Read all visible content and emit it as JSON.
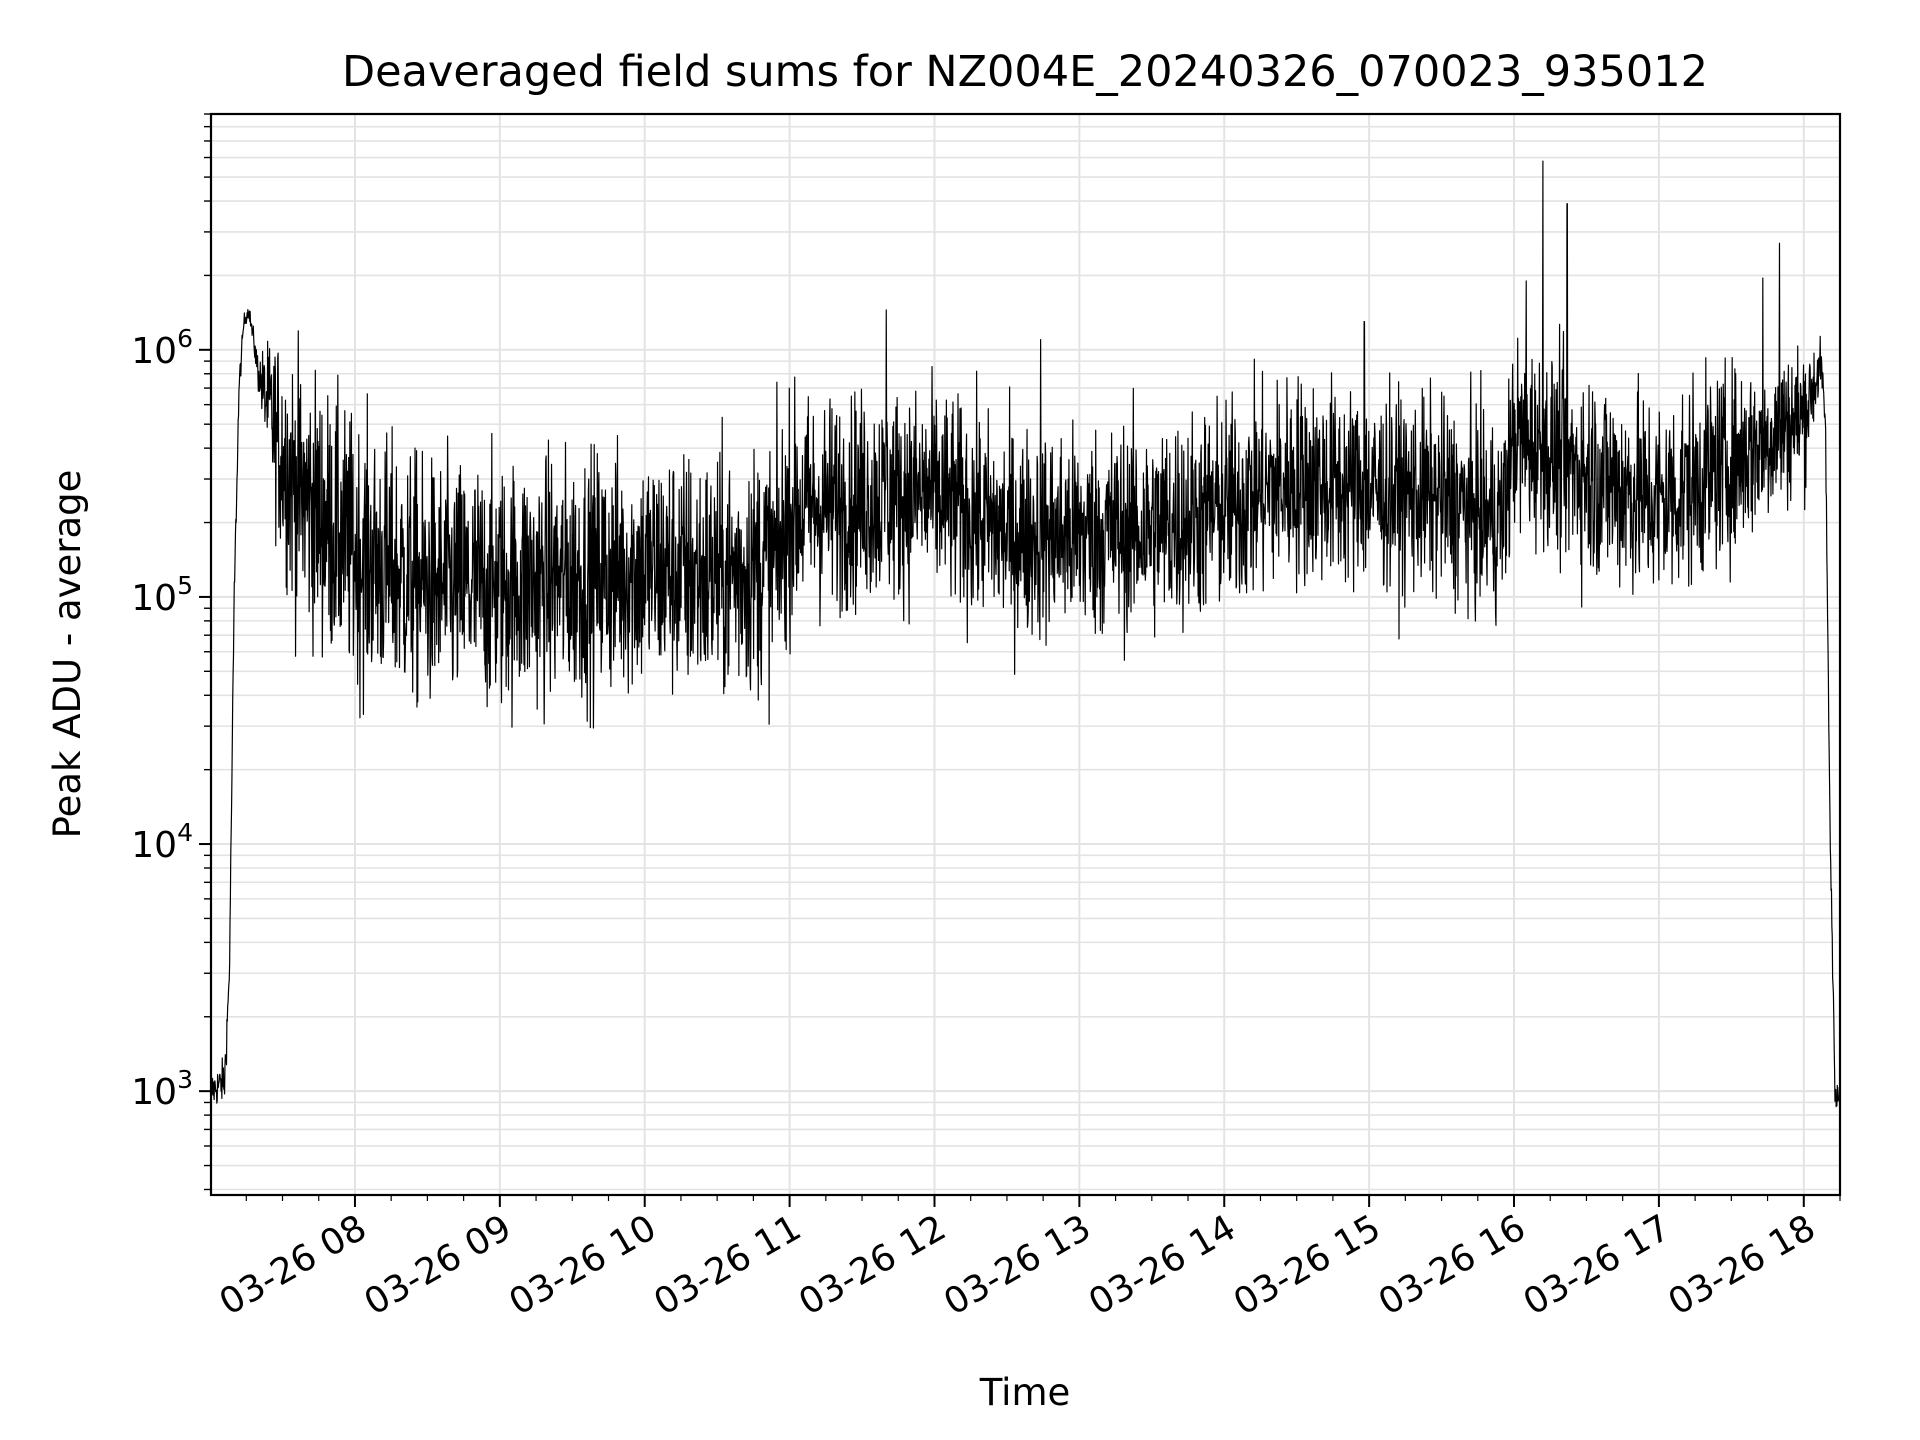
{
  "chart_data": {
    "type": "line",
    "title": "Deaveraged field sums for NZ004E_20240326_070023_935012",
    "xlabel": "Time",
    "ylabel": "Peak ADU - average",
    "x_range": [
      "2024-03-26 07:00:23",
      "2024-03-26 18:15"
    ],
    "y_scale": "log",
    "ylim": [
      380,
      9000000
    ],
    "grid": true,
    "line_color": "#000000",
    "grid_color": "#e3e3e3",
    "x_ticks": [
      {
        "t": "2024-03-26 08:00",
        "label": "03-26 08"
      },
      {
        "t": "2024-03-26 09:00",
        "label": "03-26 09"
      },
      {
        "t": "2024-03-26 10:00",
        "label": "03-26 10"
      },
      {
        "t": "2024-03-26 11:00",
        "label": "03-26 11"
      },
      {
        "t": "2024-03-26 12:00",
        "label": "03-26 12"
      },
      {
        "t": "2024-03-26 13:00",
        "label": "03-26 13"
      },
      {
        "t": "2024-03-26 14:00",
        "label": "03-26 14"
      },
      {
        "t": "2024-03-26 15:00",
        "label": "03-26 15"
      },
      {
        "t": "2024-03-26 16:00",
        "label": "03-26 16"
      },
      {
        "t": "2024-03-26 17:00",
        "label": "03-26 17"
      },
      {
        "t": "2024-03-26 18:00",
        "label": "03-26 18"
      }
    ],
    "y_ticks": [
      {
        "value": 1000,
        "base": "10",
        "exp": "3"
      },
      {
        "value": 10000,
        "base": "10",
        "exp": "4"
      },
      {
        "value": 100000,
        "base": "10",
        "exp": "5"
      },
      {
        "value": 1000000,
        "base": "10",
        "exp": "6"
      }
    ],
    "series": [
      {
        "envelope_x": [
          "2024-03-26 07:00:23",
          "2024-03-26 07:06",
          "2024-03-26 07:08",
          "2024-03-26 07:10",
          "2024-03-26 07:12",
          "2024-03-26 07:14",
          "2024-03-26 07:16",
          "2024-03-26 07:18",
          "2024-03-26 07:20",
          "2024-03-26 07:25",
          "2024-03-26 07:30",
          "2024-03-26 07:35",
          "2024-03-26 08:00",
          "2024-03-26 08:30",
          "2024-03-26 09:00",
          "2024-03-26 09:30",
          "2024-03-26 10:00",
          "2024-03-26 10:30",
          "2024-03-26 10:55",
          "2024-03-26 11:00",
          "2024-03-26 11:30",
          "2024-03-26 12:00",
          "2024-03-26 12:30",
          "2024-03-26 13:00",
          "2024-03-26 13:30",
          "2024-03-26 14:00",
          "2024-03-26 14:30",
          "2024-03-26 15:00",
          "2024-03-26 15:30",
          "2024-03-26 15:55",
          "2024-03-26 16:00",
          "2024-03-26 16:30",
          "2024-03-26 17:00",
          "2024-03-26 17:30",
          "2024-03-26 18:00",
          "2024-03-26 18:05",
          "2024-03-26 18:07",
          "2024-03-26 18:09",
          "2024-03-26 18:10",
          "2024-03-26 18:11",
          "2024-03-26 18:13",
          "2024-03-26 18:15"
        ],
        "envelope_center": [
          1000,
          1100,
          3000,
          100000,
          700000,
          1300000,
          1450000,
          1100000,
          800000,
          550000,
          380000,
          280000,
          150000,
          110000,
          110000,
          120000,
          130000,
          120000,
          140000,
          220000,
          250000,
          260000,
          180000,
          180000,
          190000,
          230000,
          300000,
          270000,
          250000,
          200000,
          450000,
          320000,
          240000,
          350000,
          550000,
          750000,
          900000,
          500000,
          60000,
          10000,
          1000,
          900
        ],
        "noise_decades": [
          0.05,
          0.06,
          0.05,
          0.05,
          0.04,
          0.02,
          0.02,
          0.03,
          0.05,
          0.2,
          0.3,
          0.35,
          0.35,
          0.33,
          0.33,
          0.33,
          0.33,
          0.33,
          0.33,
          0.3,
          0.28,
          0.28,
          0.28,
          0.28,
          0.28,
          0.28,
          0.28,
          0.26,
          0.26,
          0.26,
          0.25,
          0.28,
          0.28,
          0.25,
          0.2,
          0.1,
          0.06,
          0.05,
          0.05,
          0.05,
          0.05,
          0.05
        ],
        "spikes": [
          {
            "t": "2024-03-26 11:40",
            "value": 1450000
          },
          {
            "t": "2024-03-26 12:44",
            "value": 1100000
          },
          {
            "t": "2024-03-26 14:58",
            "value": 1300000
          },
          {
            "t": "2024-03-26 16:05",
            "value": 1900000
          },
          {
            "t": "2024-03-26 16:12",
            "value": 5800000
          },
          {
            "t": "2024-03-26 16:22",
            "value": 3900000
          },
          {
            "t": "2024-03-26 17:43",
            "value": 1950000
          },
          {
            "t": "2024-03-26 17:50",
            "value": 2700000
          }
        ]
      }
    ]
  }
}
